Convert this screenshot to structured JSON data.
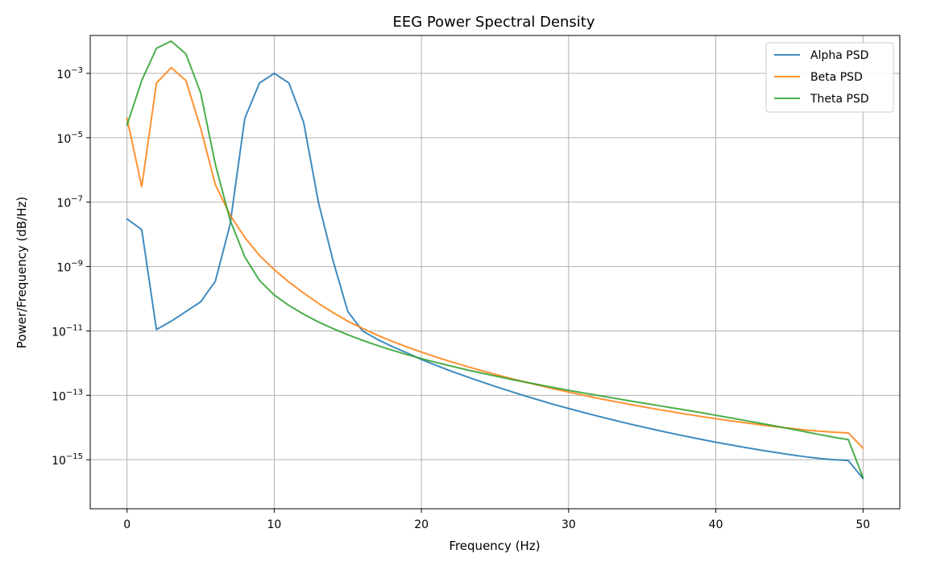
{
  "chart_data": {
    "type": "line",
    "title": "EEG Power Spectral Density",
    "xlabel": "Frequency (Hz)",
    "ylabel": "Power/Frequency (dB/Hz)",
    "xlim": [
      -2.5,
      52.5
    ],
    "ylim": [
      3e-17,
      0.015
    ],
    "yscale": "log",
    "grid": true,
    "legend_position": "top-right",
    "xticks": [
      0,
      10,
      20,
      30,
      40,
      50
    ],
    "xtick_labels": [
      "0",
      "10",
      "20",
      "30",
      "40",
      "50"
    ],
    "yticks": [
      -15,
      -13,
      -11,
      -9,
      -7,
      -5,
      -3
    ],
    "ytick_mantissa": "10",
    "x": [
      0,
      1,
      2,
      3,
      4,
      5,
      6,
      7,
      8,
      9,
      10,
      11,
      12,
      13,
      14,
      15,
      16,
      17,
      18,
      19,
      20,
      21,
      22,
      23,
      24,
      25,
      26,
      27,
      28,
      29,
      30,
      31,
      32,
      33,
      34,
      35,
      36,
      37,
      38,
      39,
      40,
      41,
      42,
      43,
      44,
      45,
      46,
      47,
      48,
      49,
      50
    ],
    "series": [
      {
        "name": "Alpha PSD",
        "color": "#1f77b4",
        "values": [
          3e-08,
          1.4e-08,
          1.1e-11,
          2e-11,
          4e-11,
          8e-11,
          3.5e-10,
          2e-08,
          4e-05,
          0.0005,
          0.001,
          0.0005,
          3e-05,
          1e-07,
          1.5e-09,
          4e-11,
          1e-11,
          5.5e-12,
          3.3e-12,
          2.1e-12,
          1.3e-12,
          8.5e-13,
          5.7e-13,
          3.9e-13,
          2.7e-13,
          1.9e-13,
          1.35e-13,
          9.7e-14,
          7.1e-14,
          5.2e-14,
          3.9e-14,
          2.95e-14,
          2.25e-14,
          1.73e-14,
          1.34e-14,
          1.05e-14,
          8.3e-15,
          6.6e-15,
          5.3e-15,
          4.3e-15,
          3.5e-15,
          2.9e-15,
          2.4e-15,
          2e-15,
          1.7e-15,
          1.45e-15,
          1.25e-15,
          1.1e-15,
          1e-15,
          9.5e-16,
          2.6e-16
        ]
      },
      {
        "name": "Beta PSD",
        "color": "#ff7f0e",
        "values": [
          4e-05,
          3e-07,
          0.0005,
          0.0015,
          0.0006,
          2e-05,
          3.5e-07,
          4e-08,
          8e-09,
          2.2e-09,
          8e-10,
          3.3e-10,
          1.5e-10,
          7.2e-11,
          3.7e-11,
          2e-11,
          1.2e-11,
          7.4e-12,
          4.8e-12,
          3.2e-12,
          2.2e-12,
          1.55e-12,
          1.11e-12,
          8.1e-13,
          6e-13,
          4.5e-13,
          3.4e-13,
          2.62e-13,
          2.03e-13,
          1.59e-13,
          1.26e-13,
          1.01e-13,
          8.1e-14,
          6.6e-14,
          5.4e-14,
          4.45e-14,
          3.7e-14,
          3.1e-14,
          2.6e-14,
          2.2e-14,
          1.88e-14,
          1.62e-14,
          1.4e-14,
          1.22e-14,
          1.07e-14,
          9.5e-15,
          8.5e-15,
          7.7e-15,
          7.2e-15,
          6.8e-15,
          2.3e-15
        ]
      },
      {
        "name": "Theta PSD",
        "color": "#2ca02c",
        "values": [
          2.5e-05,
          0.0006,
          0.006,
          0.01,
          0.004,
          0.00025,
          1.5e-06,
          2.8e-08,
          2e-09,
          3.7e-10,
          1.3e-10,
          6.2e-11,
          3.3e-11,
          1.9e-11,
          1.18e-11,
          7.6e-12,
          5.1e-12,
          3.55e-12,
          2.53e-12,
          1.85e-12,
          1.38e-12,
          1.05e-12,
          8.1e-13,
          6.3e-13,
          5e-13,
          4e-13,
          3.2e-13,
          2.6e-13,
          2.12e-13,
          1.74e-13,
          1.43e-13,
          1.19e-13,
          9.9e-14,
          8.3e-14,
          6.9e-14,
          5.8e-14,
          4.9e-14,
          4.1e-14,
          3.45e-14,
          2.9e-14,
          2.4e-14,
          2e-14,
          1.65e-14,
          1.36e-14,
          1.12e-14,
          9.2e-15,
          7.5e-15,
          6.1e-15,
          5e-15,
          4.2e-15,
          2.8e-16
        ]
      }
    ]
  }
}
